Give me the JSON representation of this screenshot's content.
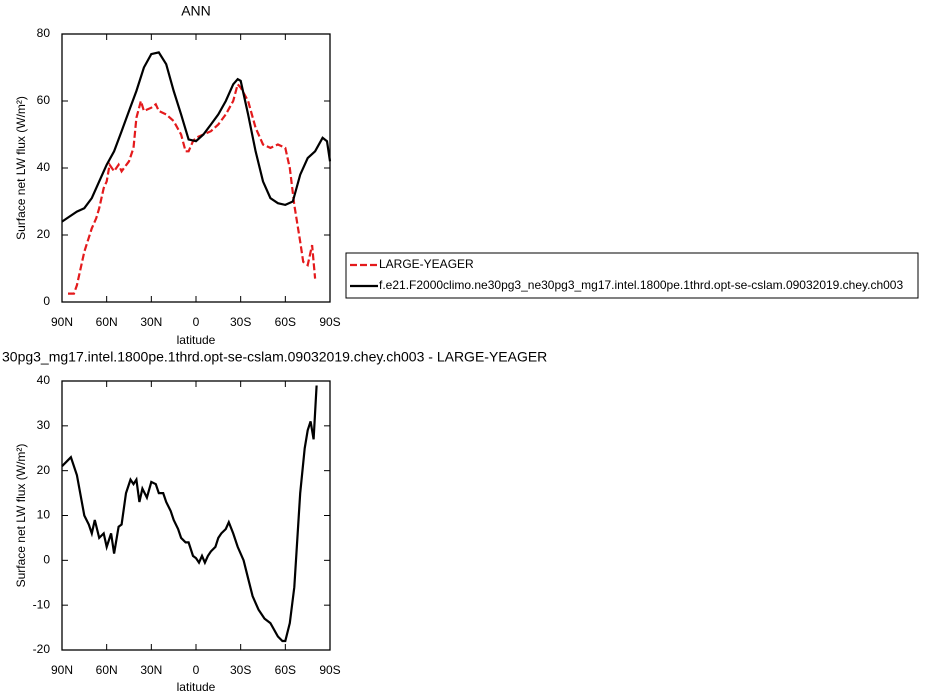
{
  "chart_data": [
    {
      "type": "line",
      "title": "ANN",
      "xlabel": "latitude",
      "ylabel": "Surface net LW flux (W/m²)",
      "xlim": [
        90,
        -90
      ],
      "xticks": [
        {
          "value": 90,
          "label": "90N"
        },
        {
          "value": 60,
          "label": "60N"
        },
        {
          "value": 30,
          "label": "30N"
        },
        0,
        {
          "value": -30,
          "label": "30S"
        },
        {
          "value": -60,
          "label": "60S"
        },
        {
          "value": -90,
          "label": "90S"
        }
      ],
      "ylim": [
        0,
        80
      ],
      "yticks": [
        0,
        20,
        40,
        60,
        80
      ],
      "legend": "right",
      "series": [
        {
          "name": "LARGE-YEAGER",
          "color": "#e41a1c",
          "dash": "dashed",
          "x": [
            86,
            82,
            80,
            75,
            70,
            67,
            65,
            62,
            60,
            58,
            55,
            52,
            50,
            45,
            42,
            40,
            37,
            35,
            30,
            27,
            25,
            20,
            15,
            10,
            7,
            5,
            2,
            0,
            -5,
            -10,
            -15,
            -20,
            -25,
            -28,
            -30,
            -35,
            -40,
            -45,
            -50,
            -55,
            -60,
            -63,
            -66,
            -70,
            -72,
            -75,
            -78,
            -80
          ],
          "values": [
            2.5,
            2.5,
            5,
            15,
            22,
            25,
            28,
            34,
            36,
            41,
            39,
            41,
            39,
            42,
            46,
            55,
            60,
            57,
            58,
            59,
            57,
            56,
            54,
            50,
            45,
            45,
            48,
            49,
            50,
            51,
            53,
            56,
            60,
            65,
            64,
            60,
            52,
            47,
            46,
            47,
            46,
            40,
            29,
            18,
            12,
            11,
            17,
            7
          ]
        },
        {
          "name": "f.e21.F2000climo.ne30pg3_ne30pg3_mg17.intel.1800pe.1thrd.opt-se-cslam.09032019.chey.ch003",
          "color": "#000000",
          "dash": "solid",
          "x": [
            90,
            85,
            80,
            75,
            70,
            65,
            60,
            55,
            50,
            45,
            40,
            35,
            30,
            25,
            20,
            15,
            10,
            5,
            0,
            -5,
            -10,
            -15,
            -20,
            -25,
            -28,
            -30,
            -35,
            -40,
            -45,
            -50,
            -55,
            -60,
            -65,
            -70,
            -75,
            -80,
            -85,
            -88,
            -90
          ],
          "values": [
            24,
            25.5,
            27,
            28,
            31,
            36,
            41,
            45,
            51,
            57,
            63,
            70,
            74,
            74.5,
            71,
            63,
            56,
            48.5,
            48,
            50,
            53,
            56,
            60,
            65,
            66.5,
            66,
            56,
            45,
            36,
            31,
            29.5,
            29,
            30,
            38,
            43,
            45,
            49,
            48,
            42
          ]
        }
      ]
    },
    {
      "type": "line",
      "title": "30pg3_mg17.intel.1800pe.1thrd.opt-se-cslam.09032019.chey.ch003 - LARGE-YEAGER",
      "xlabel": "latitude",
      "ylabel": "Surface net LW flux (W/m²)",
      "xlim": [
        90,
        -90
      ],
      "xticks": [
        {
          "value": 90,
          "label": "90N"
        },
        {
          "value": 60,
          "label": "60N"
        },
        {
          "value": 30,
          "label": "30N"
        },
        0,
        {
          "value": -30,
          "label": "30S"
        },
        {
          "value": -60,
          "label": "60S"
        },
        {
          "value": -90,
          "label": "90S"
        }
      ],
      "ylim": [
        -20,
        40
      ],
      "yticks": [
        -20,
        -10,
        0,
        10,
        20,
        30,
        40
      ],
      "color": "#000000",
      "x": [
        90,
        87,
        84,
        80,
        75,
        72,
        70,
        68,
        65,
        62,
        60,
        57,
        55,
        52,
        50,
        47,
        44,
        42,
        40,
        38,
        36,
        33,
        30,
        27,
        25,
        22,
        20,
        17,
        15,
        12,
        10,
        7,
        5,
        2,
        0,
        -2,
        -4,
        -6,
        -8,
        -10,
        -13,
        -15,
        -17,
        -20,
        -22,
        -25,
        -28,
        -32,
        -35,
        -38,
        -42,
        -46,
        -50,
        -55,
        -58,
        -60,
        -63,
        -66,
        -70,
        -73,
        -75,
        -77,
        -79,
        -80,
        -81
      ],
      "values": [
        21,
        22,
        23,
        19,
        10,
        8,
        6,
        9,
        5,
        6,
        3,
        6,
        1.5,
        7.5,
        8,
        15,
        18,
        17,
        18,
        13,
        16,
        14,
        17.5,
        17,
        15,
        15,
        13,
        11,
        9,
        7,
        5,
        4,
        4,
        1,
        0.5,
        -0.5,
        1,
        -0.5,
        1,
        2,
        3,
        5,
        6,
        7,
        8.5,
        6,
        3,
        0,
        -4,
        -8,
        -11,
        -13,
        -14,
        -17,
        -18,
        -18,
        -14,
        -6,
        15,
        25,
        29,
        31,
        27,
        33,
        39
      ]
    }
  ]
}
